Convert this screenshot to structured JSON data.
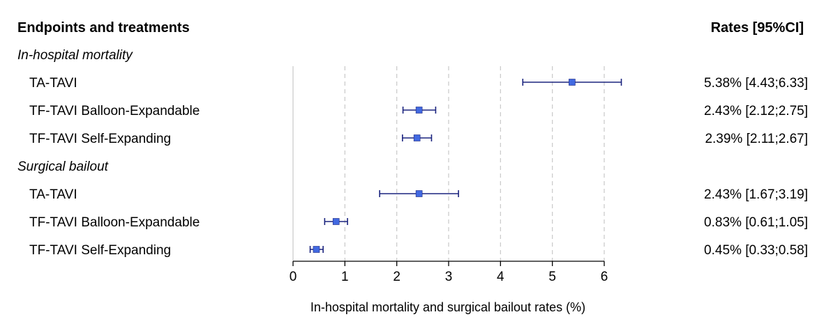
{
  "chart_data": {
    "type": "forest",
    "header_left": "Endpoints and treatments",
    "header_right": "Rates [95%CI]",
    "xlabel": "In-hospital mortality and surgical bailout rates (%)",
    "xlim": [
      0,
      6
    ],
    "xticks": [
      "0",
      "1",
      "2",
      "3",
      "4",
      "5",
      "6"
    ],
    "grid": "dashed-vertical",
    "colors": {
      "point": "#4169e1",
      "whisker": "#1a237e",
      "grid": "#c8c8c8",
      "axis": "#000000"
    },
    "groups": [
      {
        "name": "In-hospital mortality",
        "rows": [
          {
            "label": "TA-TAVI",
            "estimate": 5.38,
            "lower": 4.43,
            "upper": 6.33,
            "text": "5.38% [4.43;6.33]"
          },
          {
            "label": "TF-TAVI Balloon-Expandable",
            "estimate": 2.43,
            "lower": 2.12,
            "upper": 2.75,
            "text": "2.43% [2.12;2.75]"
          },
          {
            "label": "TF-TAVI Self-Expanding",
            "estimate": 2.39,
            "lower": 2.11,
            "upper": 2.67,
            "text": "2.39% [2.11;2.67]"
          }
        ]
      },
      {
        "name": "Surgical bailout",
        "rows": [
          {
            "label": "TA-TAVI",
            "estimate": 2.43,
            "lower": 1.67,
            "upper": 3.19,
            "text": "2.43% [1.67;3.19]"
          },
          {
            "label": "TF-TAVI Balloon-Expandable",
            "estimate": 0.83,
            "lower": 0.61,
            "upper": 1.05,
            "text": "0.83% [0.61;1.05]"
          },
          {
            "label": "TF-TAVI Self-Expanding",
            "estimate": 0.45,
            "lower": 0.33,
            "upper": 0.58,
            "text": "0.45% [0.33;0.58]"
          }
        ]
      }
    ]
  }
}
